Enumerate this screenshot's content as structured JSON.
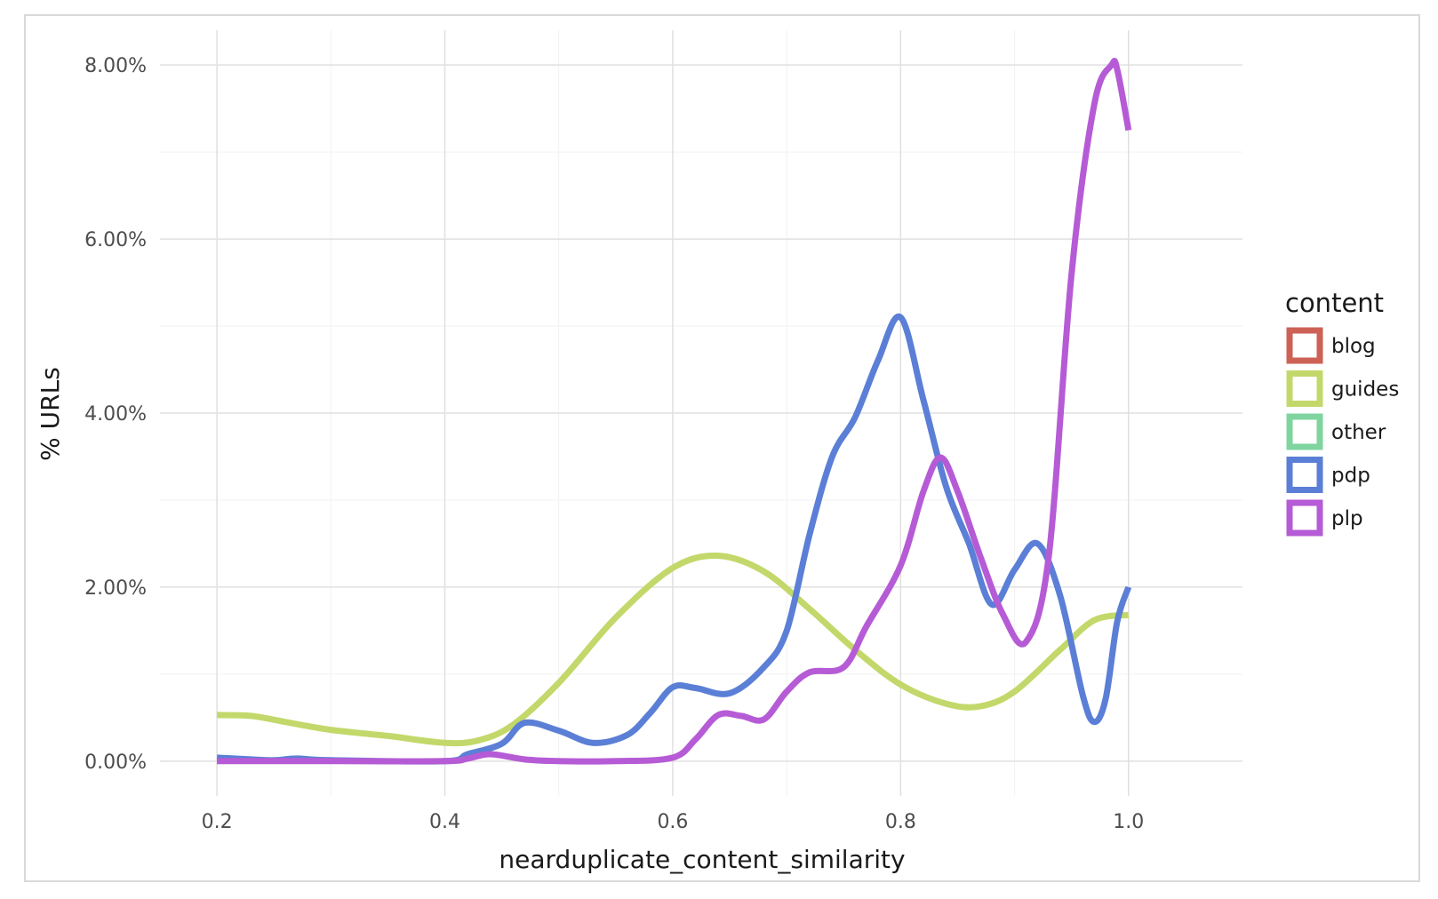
{
  "chart_data": {
    "type": "line",
    "xlabel": "nearduplicate_content_similarity",
    "ylabel": "% URLs",
    "xlim": [
      0.15,
      1.1
    ],
    "ylim": [
      -0.004,
      0.084
    ],
    "x_ticks": [
      0.2,
      0.4,
      0.6,
      0.8,
      1.0
    ],
    "x_tick_labels": [
      "0.2",
      "0.4",
      "0.6",
      "0.8",
      "1.0"
    ],
    "y_ticks": [
      0,
      0.02,
      0.04,
      0.06,
      0.08
    ],
    "y_tick_labels": [
      "0.00%",
      "2.00%",
      "4.00%",
      "6.00%",
      "8.00%"
    ],
    "grid": true,
    "legend": {
      "title": "content",
      "position": "right"
    },
    "series": [
      {
        "name": "blog",
        "color": "#cd6156",
        "x": [],
        "y": []
      },
      {
        "name": "guides",
        "color": "#c3d86a",
        "x": [
          0.2,
          0.23,
          0.26,
          0.3,
          0.35,
          0.4,
          0.43,
          0.46,
          0.5,
          0.55,
          0.6,
          0.64,
          0.68,
          0.72,
          0.76,
          0.8,
          0.84,
          0.87,
          0.9,
          0.94,
          0.97,
          1.0
        ],
        "y": [
          0.0053,
          0.0052,
          0.0045,
          0.0036,
          0.0029,
          0.0021,
          0.0024,
          0.0042,
          0.009,
          0.0165,
          0.0222,
          0.0236,
          0.0218,
          0.0175,
          0.0128,
          0.0088,
          0.0066,
          0.0063,
          0.008,
          0.0128,
          0.0162,
          0.0168
        ]
      },
      {
        "name": "other",
        "color": "#7fd49f",
        "x": [],
        "y": []
      },
      {
        "name": "pdp",
        "color": "#5b7fd6",
        "x": [
          0.2,
          0.23,
          0.25,
          0.27,
          0.3,
          0.4,
          0.42,
          0.45,
          0.47,
          0.5,
          0.53,
          0.56,
          0.58,
          0.6,
          0.62,
          0.65,
          0.68,
          0.7,
          0.72,
          0.74,
          0.76,
          0.78,
          0.8,
          0.82,
          0.84,
          0.86,
          0.88,
          0.9,
          0.92,
          0.94,
          0.96,
          0.97,
          0.98,
          0.99,
          1.0
        ],
        "y": [
          0.0004,
          0.0002,
          0.0001,
          0.0003,
          0.0001,
          0.0,
          0.0008,
          0.002,
          0.0044,
          0.0035,
          0.0021,
          0.003,
          0.0055,
          0.0085,
          0.0084,
          0.0078,
          0.0108,
          0.015,
          0.026,
          0.035,
          0.0395,
          0.046,
          0.051,
          0.0415,
          0.0315,
          0.025,
          0.018,
          0.022,
          0.025,
          0.019,
          0.0075,
          0.0045,
          0.0072,
          0.016,
          0.02
        ]
      },
      {
        "name": "plp",
        "color": "#b65bd6",
        "x": [
          0.2,
          0.3,
          0.4,
          0.42,
          0.44,
          0.47,
          0.5,
          0.55,
          0.6,
          0.62,
          0.64,
          0.66,
          0.68,
          0.7,
          0.72,
          0.75,
          0.77,
          0.8,
          0.82,
          0.835,
          0.85,
          0.87,
          0.89,
          0.91,
          0.93,
          0.95,
          0.97,
          0.985,
          0.99,
          1.0
        ],
        "y": [
          0.0,
          0.0,
          0.0,
          0.0003,
          0.0008,
          0.0002,
          0.0,
          0.0,
          0.0004,
          0.0025,
          0.0053,
          0.0052,
          0.0048,
          0.008,
          0.0102,
          0.0108,
          0.0155,
          0.0225,
          0.031,
          0.0349,
          0.031,
          0.0235,
          0.0168,
          0.0137,
          0.0235,
          0.056,
          0.0755,
          0.08,
          0.0795,
          0.0725
        ]
      }
    ]
  }
}
